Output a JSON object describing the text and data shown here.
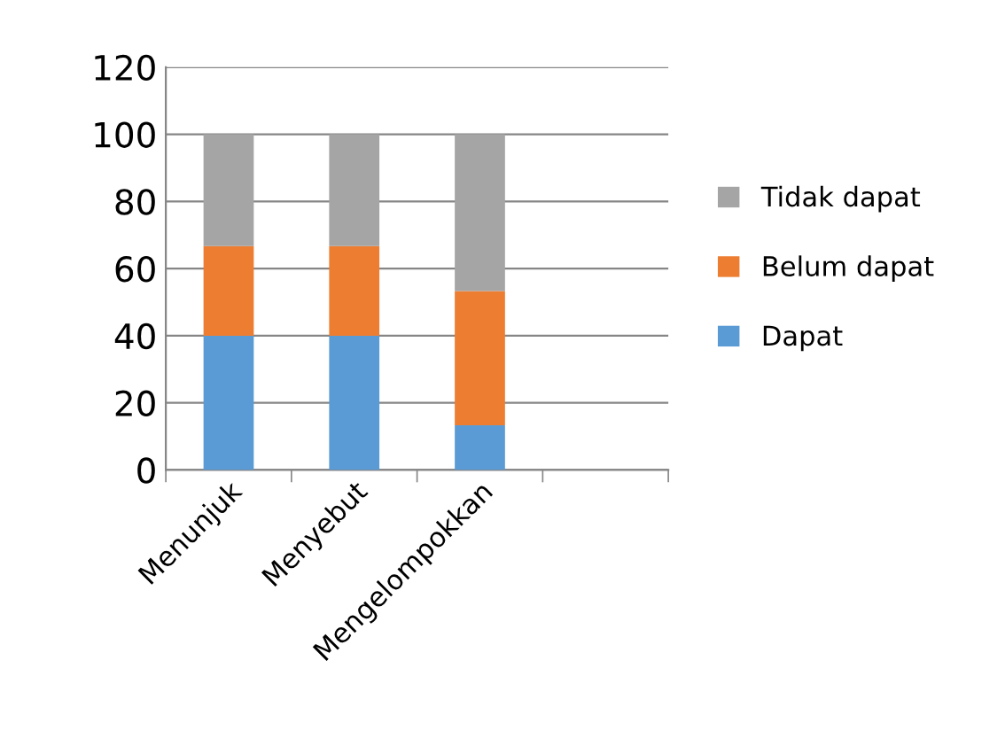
{
  "chart_data": {
    "type": "bar",
    "stacked": true,
    "categories": [
      "Menunjuk",
      "Menyebut",
      "Mengelompokkan",
      null
    ],
    "series": [
      {
        "name": "Dapat",
        "color": "#5b9bd5",
        "values": [
          40,
          40,
          13.3,
          null
        ]
      },
      {
        "name": "Belum dapat",
        "color": "#ed7d31",
        "values": [
          26.7,
          26.7,
          40,
          null
        ]
      },
      {
        "name": "Tidak dapat",
        "color": "#a5a5a5",
        "values": [
          33.3,
          33.3,
          46.7,
          null
        ]
      }
    ],
    "ylim": [
      0,
      120
    ],
    "yticks": [
      0,
      20,
      40,
      60,
      80,
      100,
      120
    ],
    "grid": "y",
    "legend": "right"
  }
}
